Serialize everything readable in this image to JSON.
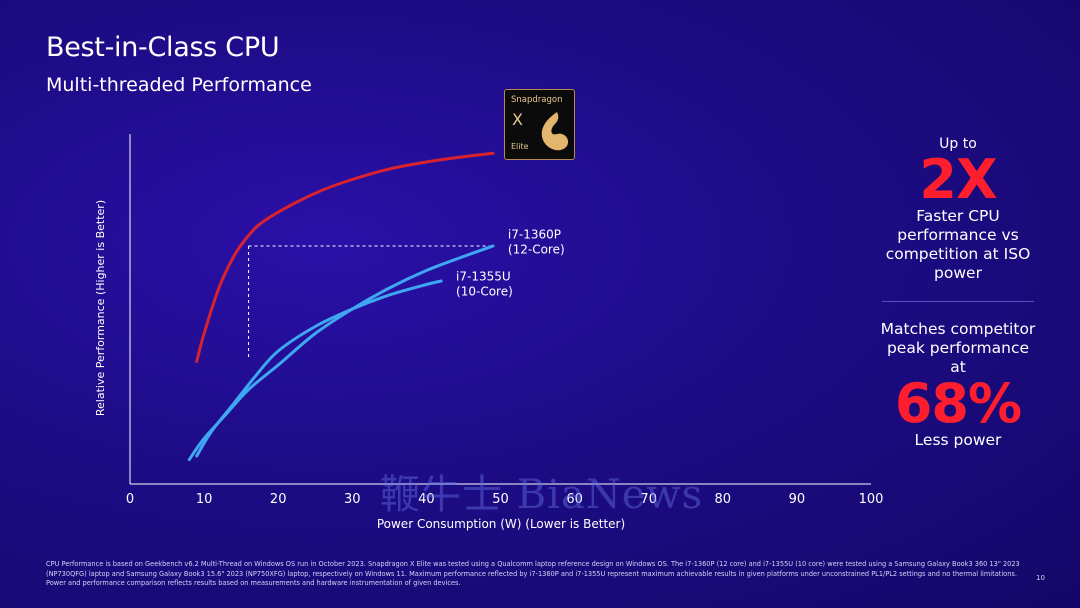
{
  "slide": {
    "title": "Best-in-Class CPU",
    "subtitle": "Multi-threaded Performance",
    "page_number": "10",
    "watermark": "鞭牛士 BiaNews",
    "footnote": "CPU Performance is based on Geekbench v6.2 Multi-Thread on Windows OS run in October 2023. Snapdragon X Elite was tested using a Qualcomm laptop reference design on Windows OS. The i7-1360P (12 core) and i7-1355U (10 core) were tested using a Samsung Galaxy Book3 360 13\" 2023 (NP730QFG) laptop and Samsung Galaxy Book3 15.6\" 2023 (NP750XFG) laptop, respectively on Windows 11. Maximum performance reflected by i7-1360P and i7-1355U represent maximum achievable results in given platforms under unconstrained PL1/PL2 settings and no thermal limitations. Power and performance comparison reflects results based on measurements and hardware instrumentation of given devices."
  },
  "logo": {
    "brand": "Snapdragon",
    "x": "X",
    "elite": "Elite"
  },
  "right_panel": {
    "up_to": "Up to",
    "big1": "2X",
    "text1": "Faster CPU performance vs competition at ISO power",
    "text2_top": "Matches competitor peak performance at",
    "big2": "68%",
    "text2_bottom": "Less power"
  },
  "colors": {
    "snapdragon": "#d8232e",
    "i7_1360p": "#3fa6f2",
    "i7_1355u": "#3fa6f2",
    "accent_red": "#ff1e2d",
    "axis": "#ffffff"
  },
  "chart_data": {
    "type": "line",
    "xlabel": "Power Consumption (W)  (Lower is Better)",
    "ylabel": "Relative Performance  (Higher is Better)",
    "xlim": [
      0,
      100
    ],
    "ylim": [
      0,
      100
    ],
    "xticks": [
      0,
      10,
      20,
      30,
      40,
      50,
      60,
      70,
      80,
      90,
      100
    ],
    "grid": false,
    "series": [
      {
        "key": "snapdragon",
        "x": [
          9,
          10,
          12,
          14,
          16,
          18,
          22,
          26,
          30,
          35,
          40,
          45,
          49
        ],
        "y": [
          35,
          43,
          56,
          65,
          71,
          75,
          80,
          84,
          87,
          90,
          92,
          93.5,
          94.5
        ]
      },
      {
        "name": "i7-1360P (12-Core)",
        "key": "i7_1360p",
        "x": [
          8,
          10,
          13,
          16,
          20,
          25,
          30,
          35,
          40,
          45,
          49
        ],
        "y": [
          7,
          13,
          20,
          27,
          34,
          43,
          50,
          56,
          61,
          65,
          68
        ]
      },
      {
        "name": "i7-1355U (10-Core)",
        "key": "i7_1355u",
        "x": [
          9,
          11,
          14,
          17,
          20,
          25,
          30,
          35,
          40,
          42
        ],
        "y": [
          8,
          15,
          23,
          31,
          38,
          45,
          50,
          54,
          57,
          58
        ]
      }
    ],
    "annotations": [
      {
        "text_line1": "i7-1360P",
        "text_line2": "(12-Core)",
        "at_x": 51,
        "at_y": 69
      },
      {
        "text_line1": "i7-1355U",
        "text_line2": "(10-Core)",
        "at_x": 44,
        "at_y": 57
      }
    ],
    "reference": {
      "x_snapdragon": 16,
      "x_competitor": 49,
      "y": 68
    }
  }
}
